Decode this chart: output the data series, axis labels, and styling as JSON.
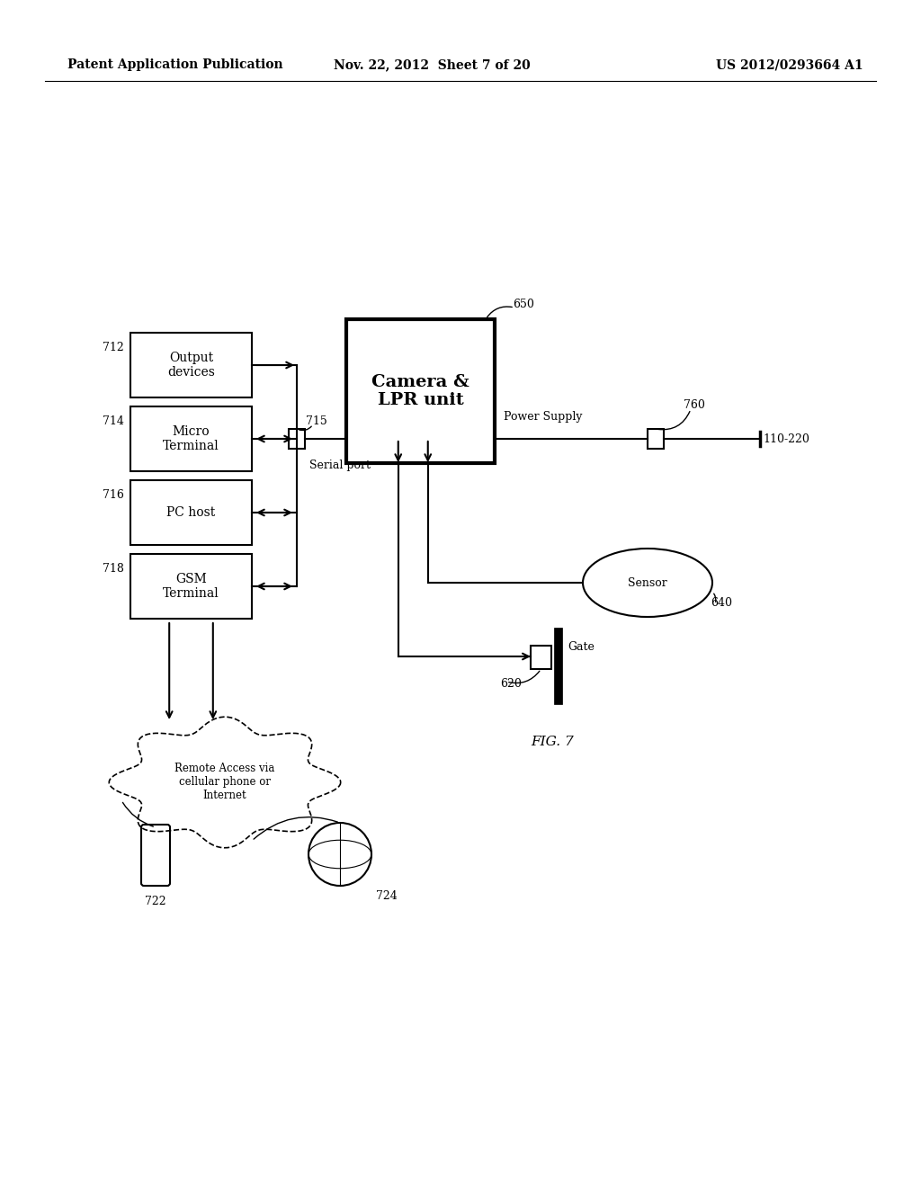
{
  "background_color": "#ffffff",
  "header_left": "Patent Application Publication",
  "header_center": "Nov. 22, 2012  Sheet 7 of 20",
  "header_right": "US 2012/0293664 A1",
  "figure_label": "FIG. 7"
}
